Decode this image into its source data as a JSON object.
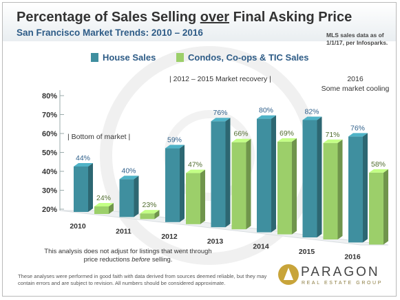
{
  "header": {
    "title_pre": "Percentage of Sales Selling ",
    "title_em": "over",
    "title_post": " Final Asking Price",
    "subtitle": "San Francisco Market Trends: 2010 – 2016",
    "source": "MLS sales data as of 1/1/17, per Infosparks."
  },
  "chart_data": {
    "type": "bar",
    "categories": [
      "2010",
      "2011",
      "2012",
      "2013",
      "2014",
      "2015",
      "2016"
    ],
    "series": [
      {
        "name": "House Sales",
        "values": [
          44,
          40,
          59,
          76,
          80,
          82,
          76
        ],
        "color": "#3f8f9f"
      },
      {
        "name": "Condos, Co-ops & TIC Sales",
        "values": [
          24,
          23,
          47,
          66,
          69,
          71,
          58
        ],
        "color": "#9ccf6a"
      }
    ],
    "value_labels": [
      [
        "44%",
        "40%",
        "59%",
        "76%",
        "80%",
        "82%",
        "76%"
      ],
      [
        "24%",
        "23%",
        "47%",
        "66%",
        "69%",
        "71%",
        "58%"
      ]
    ],
    "ylim": [
      20,
      80
    ],
    "yticks": [
      20,
      30,
      40,
      50,
      60,
      70,
      80
    ],
    "ytick_labels": [
      "20%",
      "30%",
      "40%",
      "50%",
      "60%",
      "70%",
      "80%"
    ],
    "legend_position": "top",
    "annotations": [
      "| Bottom of market |",
      "|       2012 – 2015 Market recovery       |",
      "2016",
      "Some market cooling"
    ]
  },
  "note": {
    "text_pre": "This analysis does not adjust for listings that went through price reductions ",
    "text_em": "before",
    "text_post": " selling."
  },
  "disclaimer": "These analyses were performed in good faith with data derived from sources deemed reliable, but they may contain errors and are subject to revision. All numbers should be considered approximate.",
  "logo": {
    "name": "PARAGON",
    "tagline": "REAL ESTATE GROUP",
    "icon": "paragon-logo-icon"
  },
  "colors": {
    "house": "#3f8f9f",
    "condo": "#9ccf6a",
    "title": "#333333",
    "subtitle": "#2d5b86",
    "legend_text": "#2d5b86",
    "value_house": "#2e5f8a",
    "value_condo": "#4f6b2e"
  }
}
